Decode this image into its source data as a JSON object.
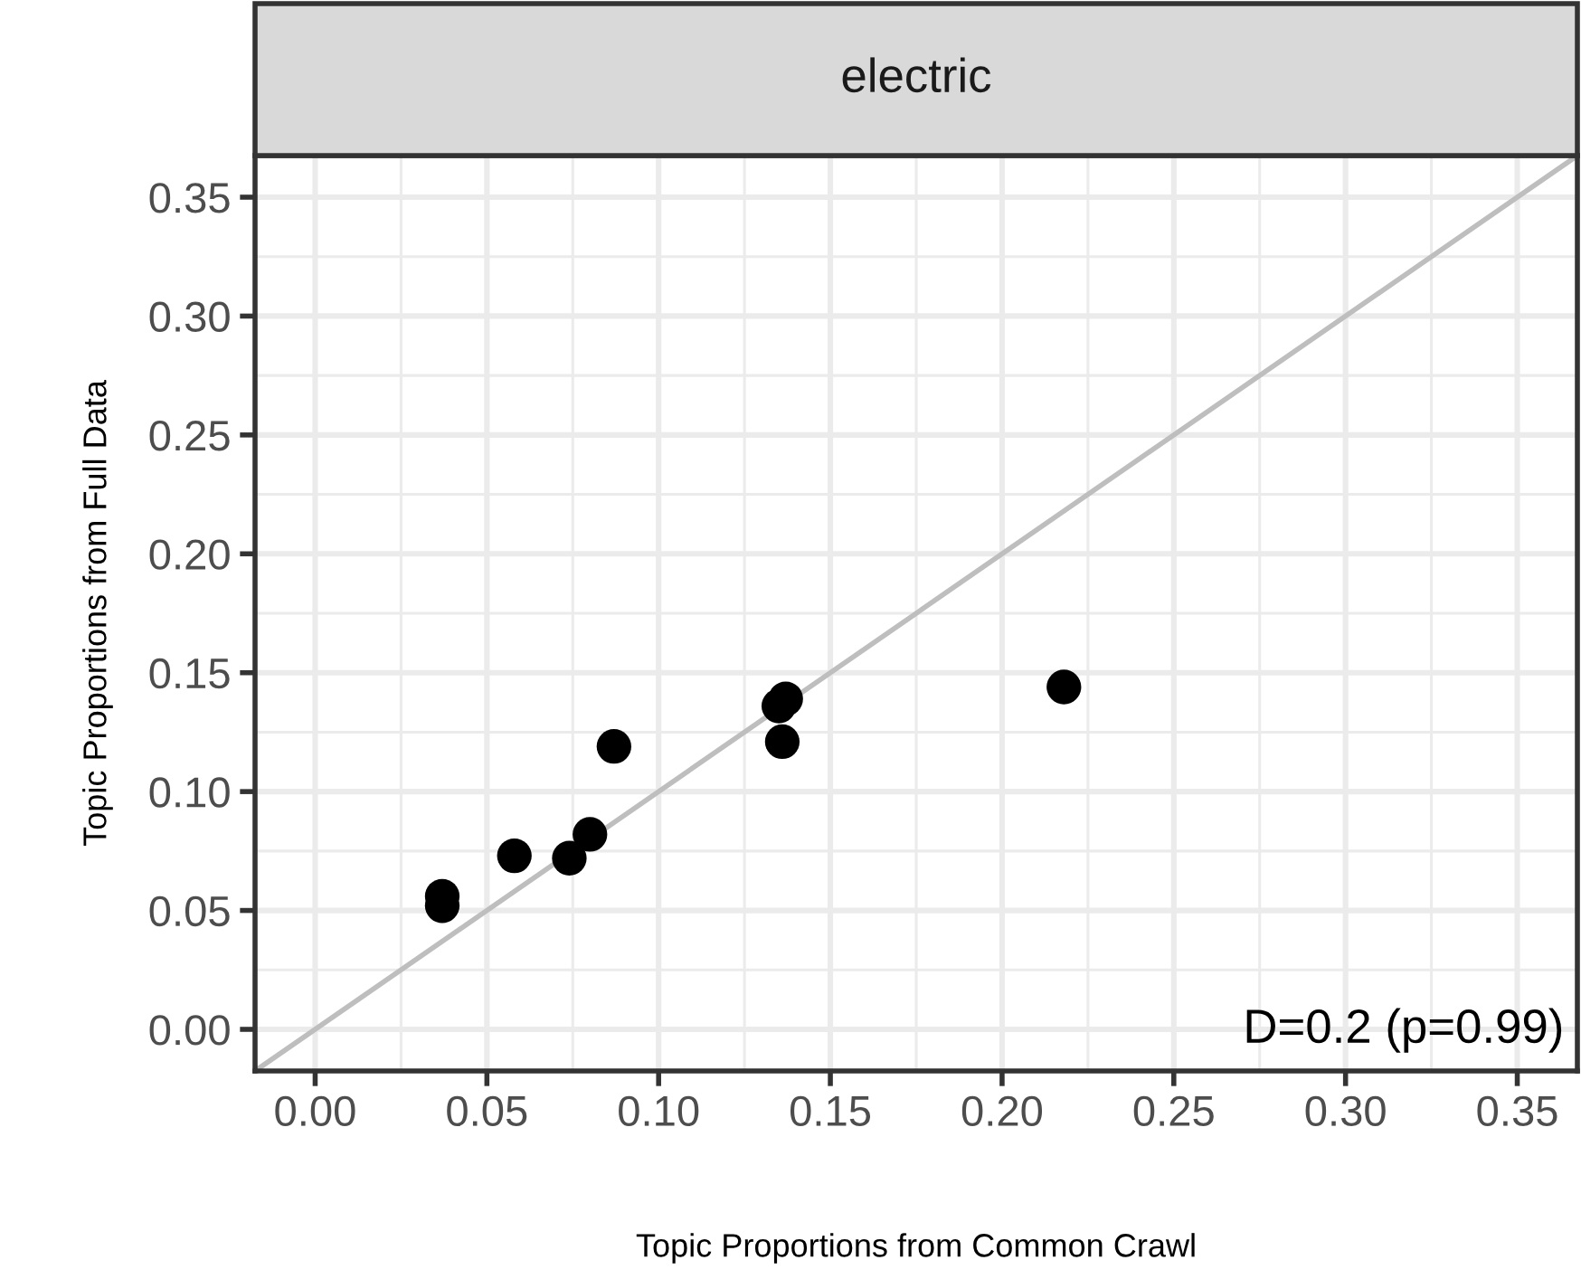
{
  "chart_data": {
    "type": "scatter",
    "title": "electric",
    "xlabel": "Topic Proportions from Common Crawl",
    "ylabel": "Topic Proportions from Full Data",
    "x": [
      0.037,
      0.037,
      0.058,
      0.074,
      0.08,
      0.087,
      0.136,
      0.137,
      0.135,
      0.218
    ],
    "series": [
      {
        "color": "#000000",
        "marker": "circle",
        "values": [
          0.052,
          0.056,
          0.073,
          0.072,
          0.082,
          0.119,
          0.121,
          0.139,
          0.136,
          0.144
        ]
      },
      {
        "type": "line",
        "marker": "none",
        "color": "#bebebe",
        "x": [
          -0.0175,
          0.3675
        ],
        "values": [
          -0.0175,
          0.3675
        ]
      }
    ],
    "xlim": [
      -0.0175,
      0.3675
    ],
    "ylim": [
      -0.0175,
      0.3675
    ],
    "xticks": [
      {
        "value": 0,
        "label": "0.00"
      },
      0.05,
      {
        "value": 0.1,
        "label": "0.10"
      },
      0.15,
      {
        "value": 0.2,
        "label": "0.20"
      },
      0.25,
      {
        "value": 0.3,
        "label": "0.30"
      },
      0.35
    ],
    "yticks": [
      {
        "value": 0,
        "label": "0.00"
      },
      0.05,
      {
        "value": 0.1,
        "label": "0.10"
      },
      0.15,
      {
        "value": 0.2,
        "label": "0.20"
      },
      0.25,
      {
        "value": 0.3,
        "label": "0.30"
      },
      0.35
    ],
    "grid": true,
    "annotations": [
      "D=0.2 (p=0.99)"
    ]
  }
}
